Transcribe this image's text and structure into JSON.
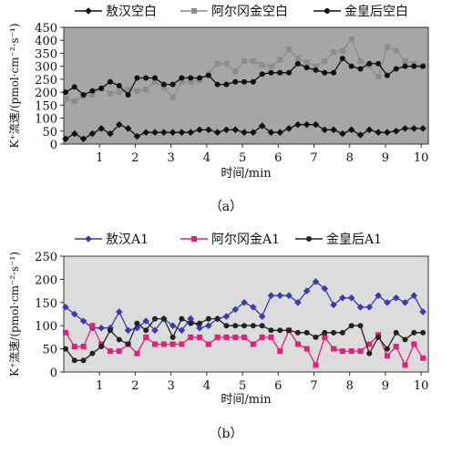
{
  "panels": [
    {
      "caption": "（a）",
      "chart_data": {
        "type": "line",
        "ylabel": "K⁺流速/(pmol·cm⁻²·s⁻¹)",
        "xlabel": "时间/min",
        "ylim": [
          0,
          450
        ],
        "xlim": [
          0,
          10.2
        ],
        "yticks": [
          0,
          50,
          100,
          150,
          200,
          250,
          300,
          350,
          400,
          450
        ],
        "xticks": [
          1,
          2,
          3,
          4,
          5,
          6,
          7,
          8,
          9,
          10
        ],
        "grid": false,
        "plot_background": "#a6a6a6",
        "legend_position": "top",
        "series": [
          {
            "name": "敖汉空白",
            "color": "#111111",
            "marker": "diamond",
            "x": [
              0.05,
              0.3,
              0.55,
              0.8,
              1.05,
              1.3,
              1.55,
              1.8,
              2.05,
              2.3,
              2.55,
              2.8,
              3.05,
              3.3,
              3.55,
              3.8,
              4.05,
              4.3,
              4.55,
              4.8,
              5.05,
              5.3,
              5.55,
              5.8,
              6.05,
              6.3,
              6.55,
              6.8,
              7.05,
              7.3,
              7.55,
              7.8,
              8.05,
              8.3,
              8.55,
              8.8,
              9.05,
              9.3,
              9.55,
              9.8,
              10.05
            ],
            "y": [
              20,
              40,
              20,
              40,
              60,
              40,
              75,
              60,
              30,
              45,
              45,
              45,
              45,
              45,
              45,
              55,
              55,
              45,
              55,
              55,
              45,
              45,
              70,
              45,
              45,
              60,
              75,
              75,
              75,
              55,
              55,
              40,
              55,
              35,
              55,
              45,
              45,
              50,
              60,
              60,
              60
            ]
          },
          {
            "name": "阿尔冈金空白",
            "color": "#8c8c8c",
            "marker": "square",
            "x": [
              0.05,
              0.3,
              0.55,
              0.8,
              1.05,
              1.3,
              1.55,
              1.8,
              2.05,
              2.3,
              2.55,
              2.8,
              3.05,
              3.3,
              3.55,
              3.8,
              4.05,
              4.3,
              4.55,
              4.8,
              5.05,
              5.3,
              5.55,
              5.8,
              6.05,
              6.3,
              6.55,
              6.8,
              7.05,
              7.3,
              7.55,
              7.8,
              8.05,
              8.3,
              8.55,
              8.8,
              9.05,
              9.3,
              9.55,
              9.8,
              10.05
            ],
            "y": [
              175,
              165,
              185,
              190,
              215,
              195,
              200,
              210,
              205,
              210,
              240,
              220,
              180,
              240,
              240,
              245,
              270,
              310,
              310,
              280,
              320,
              320,
              305,
              300,
              325,
              365,
              330,
              315,
              300,
              320,
              355,
              360,
              405,
              320,
              300,
              260,
              375,
              360,
              320,
              310,
              300
            ]
          },
          {
            "name": "金皇后空白",
            "color": "#111111",
            "marker": "circle",
            "x": [
              0.05,
              0.3,
              0.55,
              0.8,
              1.05,
              1.3,
              1.55,
              1.8,
              2.05,
              2.3,
              2.55,
              2.8,
              3.05,
              3.3,
              3.55,
              3.8,
              4.05,
              4.3,
              4.55,
              4.8,
              5.05,
              5.3,
              5.55,
              5.8,
              6.05,
              6.3,
              6.55,
              6.8,
              7.05,
              7.3,
              7.55,
              7.8,
              8.05,
              8.3,
              8.55,
              8.8,
              9.05,
              9.3,
              9.55,
              9.8,
              10.05
            ],
            "y": [
              200,
              220,
              190,
              205,
              215,
              240,
              225,
              190,
              255,
              255,
              255,
              230,
              230,
              255,
              255,
              255,
              265,
              230,
              230,
              240,
              240,
              240,
              270,
              275,
              275,
              275,
              310,
              295,
              285,
              275,
              275,
              330,
              300,
              290,
              310,
              310,
              265,
              290,
              300,
              300,
              300
            ]
          }
        ]
      }
    },
    {
      "caption": "（b）",
      "chart_data": {
        "type": "line",
        "ylabel": "K⁺流速/(pmol·cm⁻²·s⁻¹)",
        "xlabel": "时间/min",
        "ylim": [
          0,
          250
        ],
        "xlim": [
          0,
          10.2
        ],
        "yticks": [
          0,
          50,
          100,
          150,
          200,
          250
        ],
        "xticks": [
          1,
          2,
          3,
          4,
          5,
          6,
          7,
          8,
          9,
          10
        ],
        "grid": false,
        "plot_background": "#dcdcdc",
        "legend_position": "top",
        "series": [
          {
            "name": "敖汉A1",
            "color": "#3a3ab0",
            "marker": "diamond",
            "x": [
              0.05,
              0.3,
              0.55,
              0.8,
              1.05,
              1.3,
              1.55,
              1.8,
              2.05,
              2.3,
              2.55,
              2.8,
              3.05,
              3.3,
              3.55,
              3.8,
              4.05,
              4.3,
              4.55,
              4.8,
              5.05,
              5.3,
              5.55,
              5.8,
              6.05,
              6.3,
              6.55,
              6.8,
              7.05,
              7.3,
              7.55,
              7.8,
              8.05,
              8.3,
              8.55,
              8.8,
              9.05,
              9.3,
              9.55,
              9.8,
              10.05
            ],
            "y": [
              140,
              125,
              110,
              95,
              95,
              95,
              130,
              90,
              95,
              110,
              90,
              115,
              100,
              90,
              115,
              95,
              100,
              115,
              120,
              135,
              150,
              140,
              120,
              165,
              165,
              165,
              150,
              175,
              195,
              180,
              145,
              160,
              160,
              140,
              140,
              165,
              150,
              160,
              150,
              165,
              130
            ]
          },
          {
            "name": "阿尔冈金A1",
            "color": "#e0207a",
            "marker": "square",
            "x": [
              0.05,
              0.3,
              0.55,
              0.8,
              1.05,
              1.3,
              1.55,
              1.8,
              2.05,
              2.3,
              2.55,
              2.8,
              3.05,
              3.3,
              3.55,
              3.8,
              4.05,
              4.3,
              4.55,
              4.8,
              5.05,
              5.3,
              5.55,
              5.8,
              6.05,
              6.3,
              6.55,
              6.8,
              7.05,
              7.3,
              7.55,
              7.8,
              8.05,
              8.3,
              8.55,
              8.8,
              9.05,
              9.3,
              9.55,
              9.8,
              10.05
            ],
            "y": [
              85,
              55,
              55,
              100,
              60,
              45,
              45,
              60,
              40,
              75,
              60,
              60,
              60,
              60,
              75,
              75,
              60,
              75,
              75,
              75,
              75,
              60,
              75,
              75,
              45,
              90,
              60,
              50,
              15,
              75,
              50,
              45,
              45,
              45,
              60,
              80,
              35,
              55,
              15,
              60,
              30
            ]
          },
          {
            "name": "金皇后A1",
            "color": "#222222",
            "marker": "circle",
            "x": [
              0.05,
              0.3,
              0.55,
              0.8,
              1.05,
              1.3,
              1.55,
              1.8,
              2.05,
              2.3,
              2.55,
              2.8,
              3.05,
              3.3,
              3.55,
              3.8,
              4.05,
              4.3,
              4.55,
              4.8,
              5.05,
              5.3,
              5.55,
              5.8,
              6.05,
              6.3,
              6.55,
              6.8,
              7.05,
              7.3,
              7.55,
              7.8,
              8.05,
              8.3,
              8.55,
              8.8,
              9.05,
              9.3,
              9.55,
              9.8,
              10.05
            ],
            "y": [
              50,
              25,
              25,
              40,
              55,
              90,
              70,
              60,
              105,
              90,
              115,
              115,
              75,
              115,
              105,
              105,
              115,
              115,
              100,
              100,
              100,
              100,
              100,
              90,
              90,
              90,
              85,
              85,
              75,
              85,
              85,
              85,
              100,
              100,
              40,
              75,
              50,
              85,
              70,
              85,
              85
            ]
          }
        ]
      }
    }
  ]
}
